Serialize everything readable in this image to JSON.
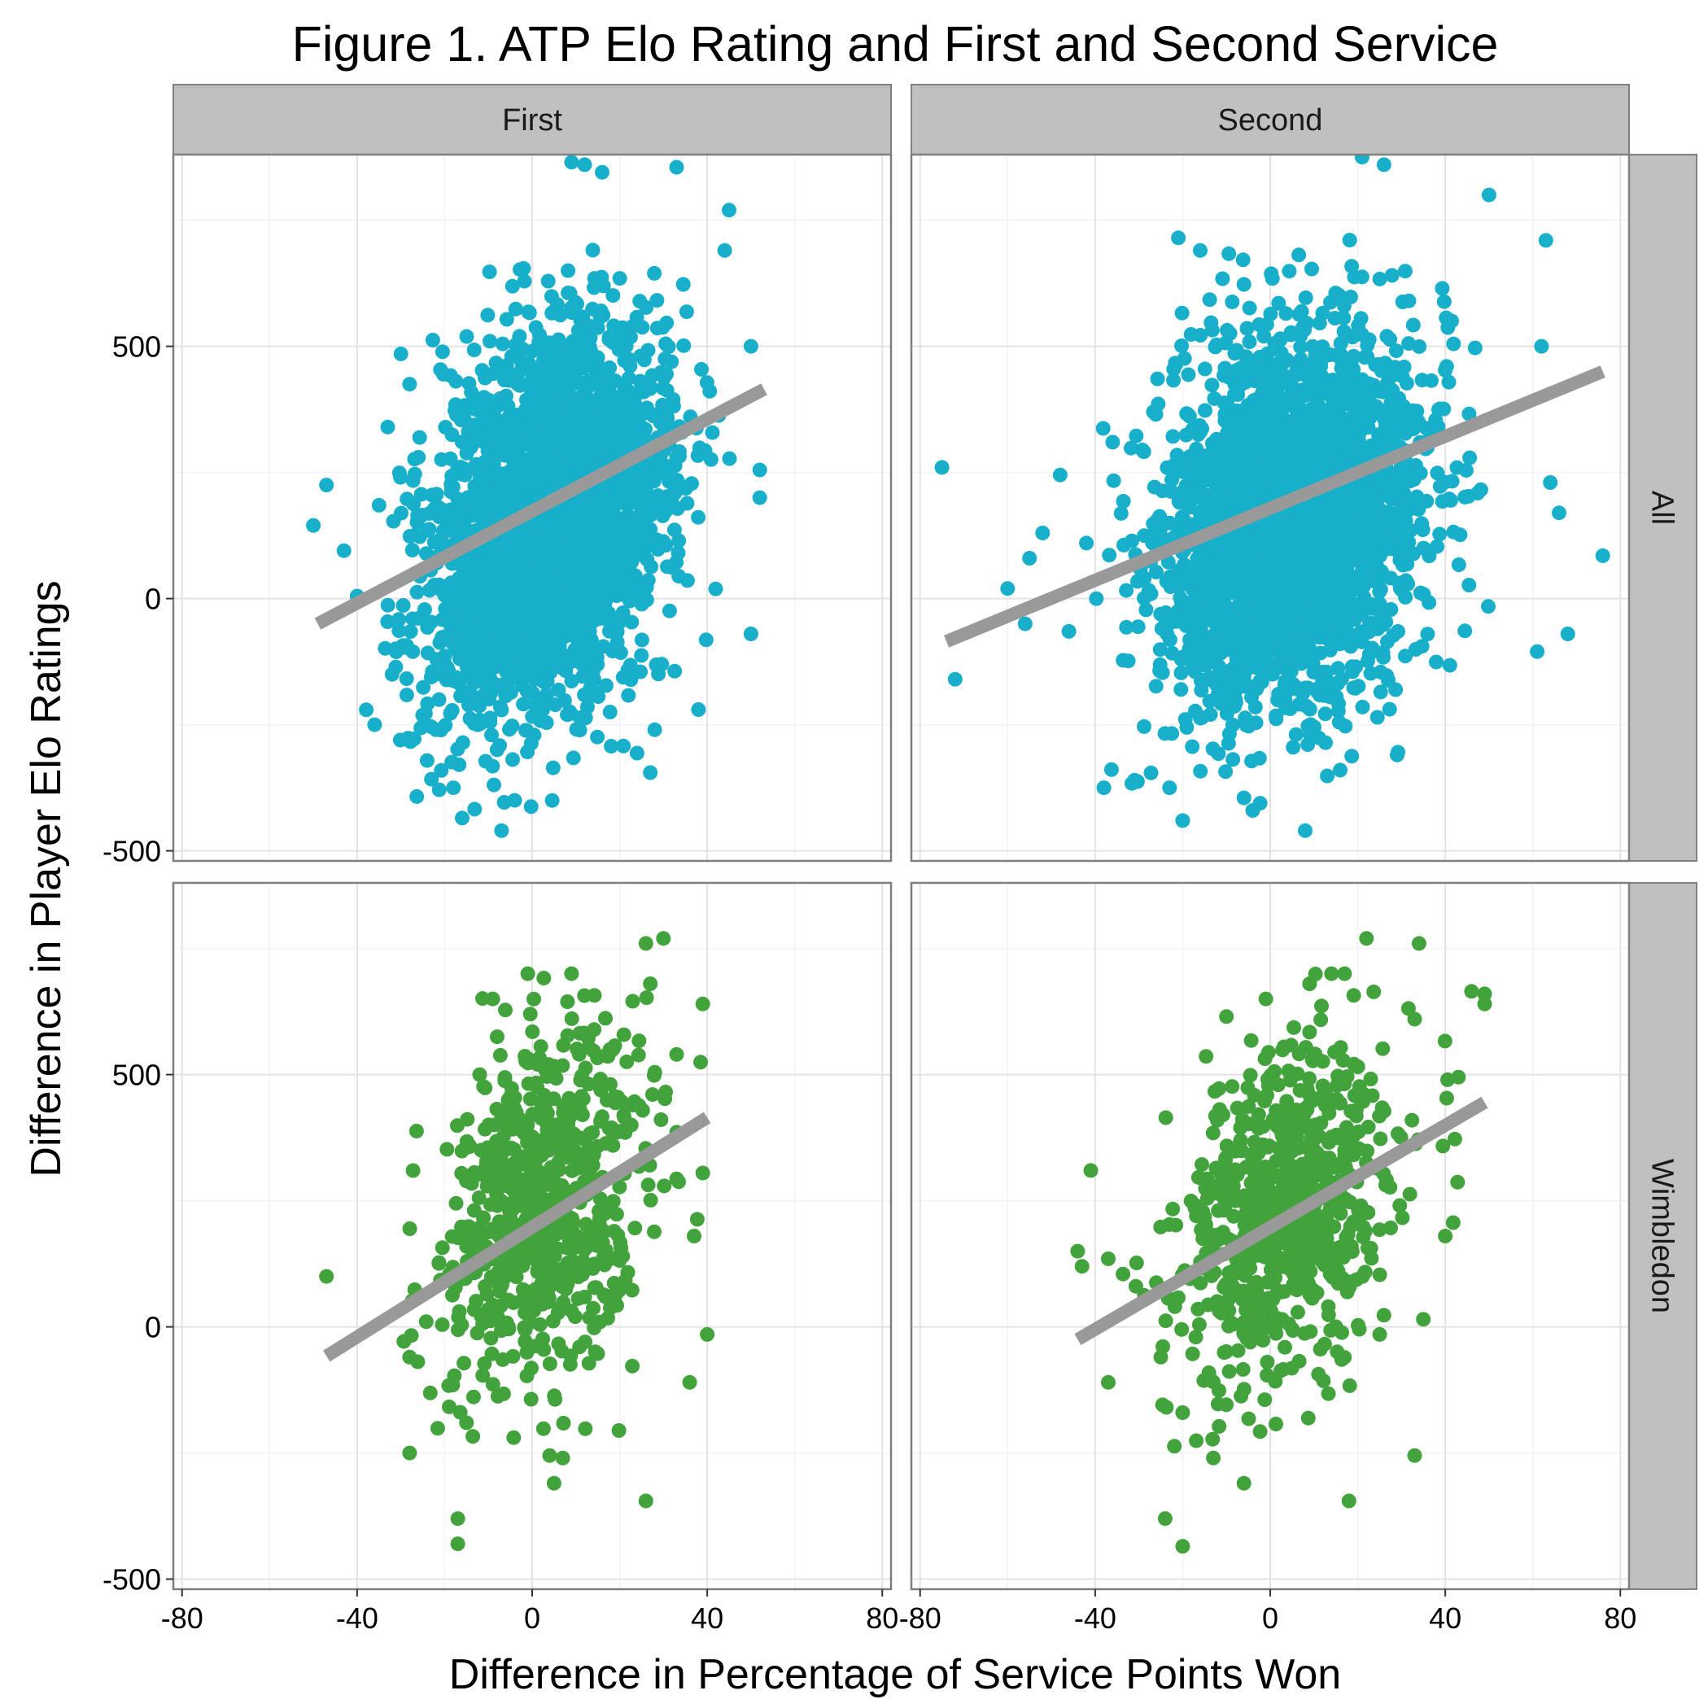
{
  "figure": {
    "title": "Figure 1. ATP Elo Rating and First and Second Service",
    "xlabel": "Difference in Percentage of Service Points Won",
    "ylabel": "Difference in Player Elo Ratings"
  },
  "chart_data": {
    "type": "scatter",
    "facet_columns": [
      "First",
      "Second"
    ],
    "facet_rows": [
      "All",
      "Wimbledon"
    ],
    "xlim": [
      -82,
      82
    ],
    "ylim": [
      -520,
      880
    ],
    "x_ticks": [
      -80,
      -40,
      0,
      40,
      80
    ],
    "x_tick_labels": [
      "-80",
      "-40",
      "0",
      "40",
      "80"
    ],
    "y_ticks": [
      -500,
      0,
      500
    ],
    "y_tick_labels": [
      "-500",
      "0",
      "500"
    ],
    "grid": true,
    "colors": {
      "All": "#17AFC9",
      "Wimbledon": "#42A23C",
      "fit_line": "#999999"
    },
    "panels": [
      {
        "column": "First",
        "row": "All",
        "fit_line": {
          "x": [
            -49,
            53
          ],
          "y": [
            -50,
            415
          ]
        },
        "point_cloud": {
          "n": 2600,
          "x_mean": 4,
          "x_sd": 14,
          "y_mean": 150,
          "y_sd": 190,
          "correlation": 0.32
        },
        "outliers": [
          [
            -50,
            145
          ],
          [
            -47,
            225
          ],
          [
            -43,
            95
          ],
          [
            -40,
            5
          ],
          [
            -35,
            185
          ],
          [
            -33,
            340
          ],
          [
            -30,
            485
          ],
          [
            -28,
            425
          ],
          [
            -22,
            -260
          ],
          [
            -18,
            -375
          ],
          [
            -16,
            -435
          ],
          [
            -7,
            -460
          ],
          [
            -4,
            -400
          ],
          [
            12,
            860
          ],
          [
            9,
            865
          ],
          [
            16,
            845
          ],
          [
            33,
            855
          ],
          [
            45,
            770
          ],
          [
            52,
            255
          ],
          [
            52,
            200
          ],
          [
            50,
            -70
          ],
          [
            38,
            -220
          ],
          [
            27,
            -345
          ],
          [
            28,
            -260
          ],
          [
            44,
            690
          ],
          [
            50,
            500
          ],
          [
            -36,
            -250
          ],
          [
            -26,
            280
          ]
        ]
      },
      {
        "column": "Second",
        "row": "All",
        "fit_line": {
          "x": [
            -74,
            76
          ],
          "y": [
            -85,
            450
          ]
        },
        "point_cloud": {
          "n": 2600,
          "x_mean": 5,
          "x_sd": 15,
          "y_mean": 150,
          "y_sd": 190,
          "correlation": 0.22
        },
        "outliers": [
          [
            -75,
            260
          ],
          [
            -72,
            -160
          ],
          [
            -60,
            20
          ],
          [
            -56,
            -50
          ],
          [
            -55,
            80
          ],
          [
            -52,
            130
          ],
          [
            -48,
            245
          ],
          [
            -46,
            -65
          ],
          [
            -42,
            110
          ],
          [
            -38,
            -375
          ],
          [
            -36,
            310
          ],
          [
            -31,
            -360
          ],
          [
            -23,
            -375
          ],
          [
            -20,
            -440
          ],
          [
            -21,
            715
          ],
          [
            -16,
            690
          ],
          [
            -6,
            -395
          ],
          [
            -4,
            -420
          ],
          [
            8,
            -460
          ],
          [
            16,
            -340
          ],
          [
            21,
            875
          ],
          [
            26,
            860
          ],
          [
            29,
            -310
          ],
          [
            50,
            800
          ],
          [
            61,
            -105
          ],
          [
            63,
            710
          ],
          [
            64,
            230
          ],
          [
            76,
            85
          ],
          [
            62,
            500
          ],
          [
            66,
            170
          ],
          [
            68,
            -70
          ]
        ]
      },
      {
        "column": "First",
        "row": "Wimbledon",
        "fit_line": {
          "x": [
            -47,
            40
          ],
          "y": [
            -58,
            415
          ]
        },
        "point_cloud": {
          "n": 720,
          "x_mean": 3,
          "x_sd": 12,
          "y_mean": 230,
          "y_sd": 170,
          "correlation": 0.3
        },
        "outliers": [
          [
            -47,
            100
          ],
          [
            -28,
            -60
          ],
          [
            -28,
            -250
          ],
          [
            -17,
            -380
          ],
          [
            -17,
            -430
          ],
          [
            -15,
            -190
          ],
          [
            -12,
            500
          ],
          [
            -9,
            650
          ],
          [
            -8,
            575
          ],
          [
            -1,
            700
          ],
          [
            5,
            -310
          ],
          [
            4,
            -255
          ],
          [
            7,
            -260
          ],
          [
            9,
            700
          ],
          [
            26,
            760
          ],
          [
            26,
            -345
          ],
          [
            30,
            770
          ],
          [
            36,
            -110
          ],
          [
            37,
            180
          ],
          [
            39,
            640
          ],
          [
            40,
            -15
          ],
          [
            39,
            305
          ],
          [
            27,
            680
          ],
          [
            33,
            540
          ]
        ]
      },
      {
        "column": "Second",
        "row": "Wimbledon",
        "fit_line": {
          "x": [
            -44,
            49
          ],
          "y": [
            -25,
            445
          ]
        },
        "point_cloud": {
          "n": 720,
          "x_mean": 4,
          "x_sd": 13,
          "y_mean": 230,
          "y_sd": 170,
          "correlation": 0.3
        },
        "outliers": [
          [
            -44,
            150
          ],
          [
            -43,
            120
          ],
          [
            -41,
            310
          ],
          [
            -37,
            135
          ],
          [
            -37,
            -110
          ],
          [
            -25,
            -60
          ],
          [
            -24,
            -380
          ],
          [
            -20,
            -170
          ],
          [
            -20,
            -435
          ],
          [
            -13,
            -260
          ],
          [
            -10,
            615
          ],
          [
            -6,
            -310
          ],
          [
            -1,
            650
          ],
          [
            9,
            680
          ],
          [
            14,
            700
          ],
          [
            17,
            700
          ],
          [
            18,
            -345
          ],
          [
            22,
            770
          ],
          [
            25,
            -15
          ],
          [
            33,
            -255
          ],
          [
            34,
            760
          ],
          [
            35,
            15
          ],
          [
            43,
            495
          ],
          [
            46,
            665
          ],
          [
            49,
            640
          ],
          [
            49,
            660
          ],
          [
            40,
            180
          ],
          [
            33,
            610
          ]
        ]
      }
    ]
  }
}
